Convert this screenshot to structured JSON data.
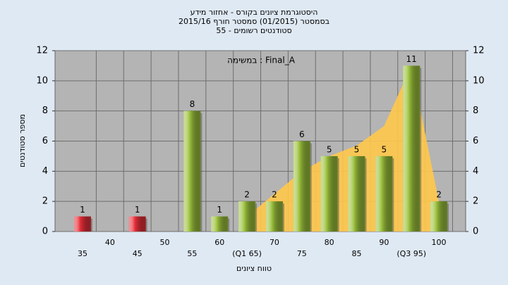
{
  "chart_data": {
    "type": "bar",
    "title": [
      "היסטוגרמת ציונים בקורס - אחזור מידע",
      "בסמסטר (01/2015) סמסטר חורף 2015/16",
      "סטודנטים רשומים - 55"
    ],
    "annotation": "במשימה : Final_A",
    "y_label": "מספר סטודנטים",
    "x_label": "טווח ציונים",
    "categories": [
      "35",
      "40",
      "45",
      "50",
      "55",
      "60",
      "(Q1 65)",
      "70",
      "75",
      "80",
      "85",
      "90",
      "(Q3 95)",
      "100"
    ],
    "values": [
      1,
      null,
      1,
      null,
      8,
      1,
      2,
      2,
      6,
      5,
      5,
      5,
      11,
      2
    ],
    "colors": [
      "#e8303a",
      null,
      "#e8303a",
      null,
      "#9bc13c",
      "#9bc13c",
      "#9bc13c",
      "#9bc13c",
      "#9bc13c",
      "#9bc13c",
      "#9bc13c",
      "#9bc13c",
      "#9bc13c",
      "#9bc13c"
    ],
    "area": {
      "color": "#ffc84a",
      "values": [
        null,
        null,
        null,
        null,
        null,
        null,
        1,
        2.5,
        4,
        5,
        5.7,
        7,
        11,
        2
      ]
    },
    "ylim": [
      0,
      12
    ],
    "yticks": [
      0,
      2,
      4,
      6,
      8,
      10,
      12
    ],
    "y2lim": [
      0,
      12
    ],
    "y2ticks": [
      0,
      2,
      4,
      6,
      8,
      10,
      12
    ],
    "grid": true,
    "plot_background": "#b4b4b4"
  }
}
